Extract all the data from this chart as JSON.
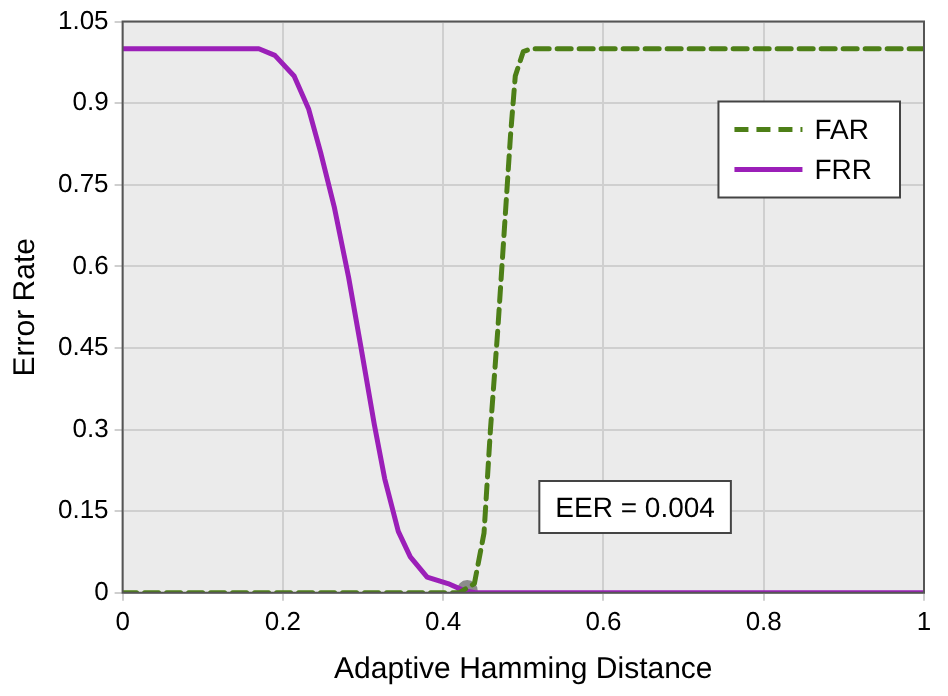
{
  "chart_data": {
    "type": "line",
    "xlabel": "Adaptive Hamming Distance",
    "ylabel": "Error Rate",
    "xlim": [
      0,
      1
    ],
    "xticks": [
      0,
      0.2,
      0.4,
      0.6,
      0.8,
      1
    ],
    "ylim": [
      0,
      1.05
    ],
    "yticks": [
      0,
      0.15,
      0.3,
      0.45,
      0.6,
      0.75,
      0.9,
      1.05
    ],
    "grid": true,
    "legend": "top right",
    "marker": "none",
    "series": [
      {
        "name": "FAR",
        "color": "#4d7f17",
        "line_style": "dashed",
        "x": [
          0,
          0.42,
          0.439,
          0.451,
          0.459,
          0.468,
          0.476,
          0.484,
          0.49,
          0.5,
          0.51,
          1
        ],
        "values": [
          0,
          0,
          0.017,
          0.11,
          0.3,
          0.48,
          0.66,
          0.84,
          0.95,
          0.995,
          1,
          1
        ]
      },
      {
        "name": "FRR",
        "color": "#9b1fb8",
        "line_style": "solid",
        "x": [
          0,
          0.17,
          0.19,
          0.214,
          0.232,
          0.247,
          0.264,
          0.282,
          0.297,
          0.314,
          0.327,
          0.344,
          0.359,
          0.38,
          0.406,
          0.426,
          0.44,
          1
        ],
        "values": [
          1,
          1,
          0.988,
          0.95,
          0.89,
          0.81,
          0.71,
          0.58,
          0.455,
          0.31,
          0.21,
          0.113,
          0.066,
          0.029,
          0.017,
          0.004,
          0,
          0
        ]
      },
      {
        "type": "scatter",
        "color": "#8c8c8c",
        "marker": "circle",
        "x": [
          0.43
        ],
        "values": [
          0.004
        ]
      }
    ],
    "annotations": [
      "EER = 0.004"
    ]
  }
}
